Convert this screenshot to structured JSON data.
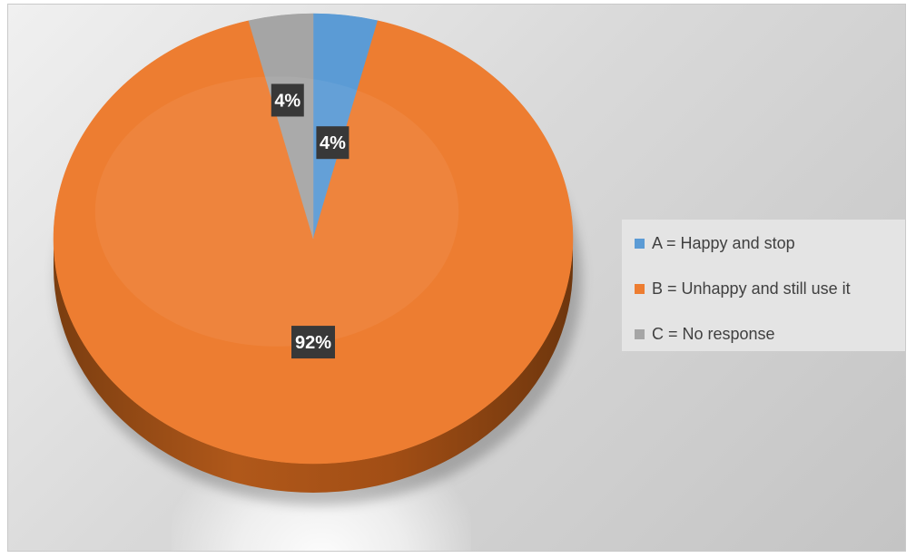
{
  "chart_data": {
    "type": "pie",
    "title": "",
    "categories": [
      "A = Happy and stop",
      "B = Unhappy and still use it",
      "C = No response"
    ],
    "values": [
      4,
      92,
      4
    ],
    "unit": "%",
    "data_labels": [
      "4%",
      "92%",
      "4%"
    ],
    "colors": [
      "#5B9BD5",
      "#ED7D31",
      "#A5A5A5"
    ],
    "legend_position": "right",
    "style": "3d"
  }
}
